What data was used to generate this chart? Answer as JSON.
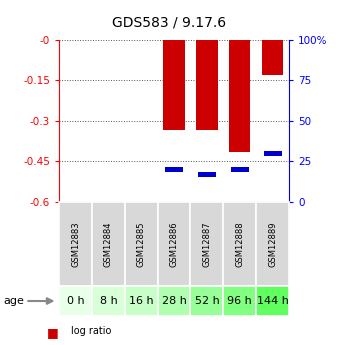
{
  "title": "GDS583 / 9.17.6",
  "samples": [
    "GSM12883",
    "GSM12884",
    "GSM12885",
    "GSM12886",
    "GSM12887",
    "GSM12888",
    "GSM12889"
  ],
  "ages": [
    "0 h",
    "8 h",
    "16 h",
    "28 h",
    "52 h",
    "96 h",
    "144 h"
  ],
  "log_ratios": [
    0.0,
    0.0,
    0.0,
    -0.335,
    -0.335,
    -0.415,
    -0.13
  ],
  "percentile_ranks": [
    null,
    null,
    null,
    20.0,
    17.0,
    20.0,
    30.0
  ],
  "ylim_min": -0.6,
  "ylim_max": 0.0,
  "y_ticks": [
    0.0,
    -0.15,
    -0.3,
    -0.45,
    -0.6
  ],
  "y_tick_labels": [
    "-0",
    "-0.15",
    "-0.3",
    "-0.45",
    "-0.6"
  ],
  "right_pct_ticks": [
    100,
    75,
    50,
    25,
    0
  ],
  "right_pct_labels": [
    "100%",
    "75",
    "50",
    "25",
    "0"
  ],
  "bar_color": "#cc0000",
  "marker_color": "#0000cc",
  "cell_bg": "#d8d8d8",
  "age_colors": [
    "#e8ffe8",
    "#d8ffd8",
    "#c8ffc8",
    "#b0ffb0",
    "#98ff98",
    "#80ff80",
    "#60ff60"
  ],
  "bar_width": 0.65,
  "dotgrid_color": "#555555",
  "title_fontsize": 10,
  "tick_fontsize": 7.5,
  "sample_fontsize": 6,
  "age_fontsize": 8
}
